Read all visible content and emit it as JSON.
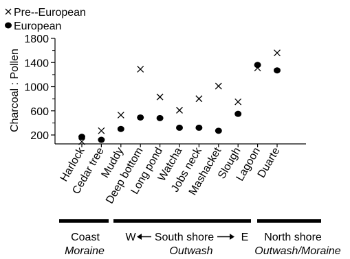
{
  "chart_data": {
    "type": "scatter",
    "categories": [
      "Harlock",
      "Cedar tree",
      "Muddy",
      "Deep bottom",
      "Long pond",
      "Watcha",
      "Jobs neck",
      "Mashacket",
      "Slough",
      "Lagoon",
      "Duarte"
    ],
    "series": [
      {
        "name": "Pre--European",
        "marker": "x",
        "values": [
          90,
          270,
          530,
          1290,
          830,
          610,
          800,
          1010,
          750,
          1310,
          1560
        ]
      },
      {
        "name": "European",
        "marker": "dot",
        "values": [
          170,
          120,
          300,
          490,
          480,
          320,
          320,
          270,
          550,
          1360,
          1270
        ]
      }
    ],
    "ylabel": "Charcoal : Pollen",
    "xlabel": "",
    "ylim": [
      0,
      1800
    ],
    "yticks": [
      200,
      600,
      1000,
      1400,
      1800
    ],
    "yticks_minor": [
      400,
      800,
      1200,
      1600
    ],
    "legend_position": "top-left",
    "grid": false,
    "colors": {
      "marks": "#000000",
      "background": "#ffffff"
    },
    "regions": [
      {
        "name": "Coast",
        "subtitle": "Moraine",
        "from": 0,
        "to": 1
      },
      {
        "name": "South shore",
        "subtitle": "Outwash",
        "from": 2,
        "to": 8,
        "west": "W",
        "east": "E"
      },
      {
        "name": "North shore",
        "subtitle": "Outwash/Moraine",
        "from": 9,
        "to": 10
      }
    ]
  }
}
